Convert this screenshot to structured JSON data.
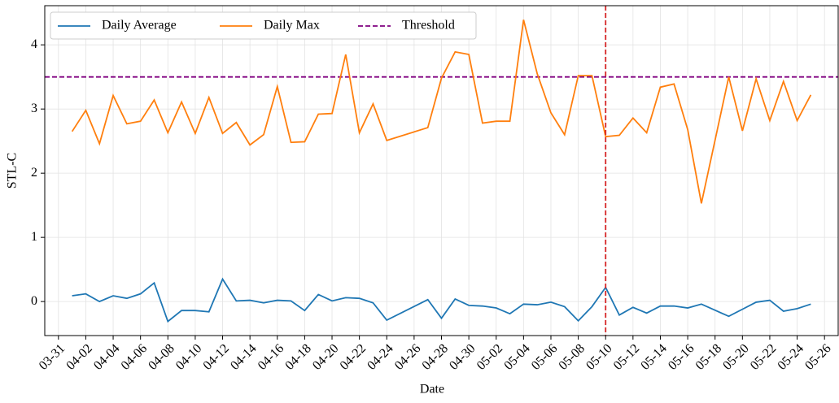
{
  "chart_data": {
    "type": "line",
    "xlabel": "Date",
    "ylabel": "STL-C",
    "x": [
      "04-01",
      "04-02",
      "04-03",
      "04-04",
      "04-05",
      "04-06",
      "04-07",
      "04-08",
      "04-09",
      "04-10",
      "04-11",
      "04-12",
      "04-13",
      "04-14",
      "04-15",
      "04-16",
      "04-17",
      "04-18",
      "04-19",
      "04-20",
      "04-21",
      "04-22",
      "04-23",
      "04-24",
      "04-27",
      "04-28",
      "04-29",
      "04-30",
      "05-01",
      "05-02",
      "05-03",
      "05-04",
      "05-05",
      "05-06",
      "05-07",
      "05-08",
      "05-09",
      "05-10",
      "05-11",
      "05-12",
      "05-13",
      "05-14",
      "05-15",
      "05-16",
      "05-17",
      "05-19",
      "05-20",
      "05-21",
      "05-22",
      "05-23",
      "05-24",
      "05-25"
    ],
    "series": [
      {
        "name": "Daily Average",
        "color": "#1f77b4",
        "values": [
          0.09,
          0.12,
          0.0,
          0.09,
          0.05,
          0.12,
          0.29,
          -0.31,
          -0.14,
          -0.14,
          -0.16,
          0.35,
          0.01,
          0.02,
          -0.02,
          0.02,
          0.01,
          -0.14,
          0.11,
          0.01,
          0.06,
          0.05,
          -0.02,
          -0.29,
          0.03,
          -0.26,
          0.04,
          -0.06,
          -0.07,
          -0.1,
          -0.19,
          -0.04,
          -0.05,
          -0.01,
          -0.08,
          -0.3,
          -0.08,
          0.22,
          -0.21,
          -0.09,
          -0.18,
          -0.07,
          -0.07,
          -0.1,
          -0.04,
          -0.23,
          -0.12,
          -0.01,
          0.02,
          -0.15,
          -0.11,
          -0.04
        ]
      },
      {
        "name": "Daily Max",
        "color": "#ff7f0e",
        "values": [
          2.65,
          2.98,
          2.46,
          3.21,
          2.77,
          2.81,
          3.14,
          2.63,
          3.11,
          2.62,
          3.18,
          2.62,
          2.79,
          2.44,
          2.6,
          3.35,
          2.48,
          2.49,
          2.92,
          2.93,
          3.85,
          2.63,
          3.08,
          2.51,
          2.71,
          3.48,
          3.89,
          3.85,
          2.78,
          2.81,
          2.81,
          4.39,
          3.55,
          2.94,
          2.6,
          3.52,
          3.52,
          2.57,
          2.59,
          2.86,
          2.63,
          3.34,
          3.39,
          2.68,
          1.53,
          3.5,
          2.66,
          3.47,
          2.82,
          3.43,
          2.82,
          3.22
        ]
      }
    ],
    "threshold": {
      "name": "Threshold",
      "value": 3.5,
      "color": "#800080"
    },
    "vline": {
      "x": "05-10",
      "color": "#d62728"
    },
    "xlim": [
      "03-30",
      "05-27"
    ],
    "xticks": [
      "03-31",
      "04-02",
      "04-04",
      "04-06",
      "04-08",
      "04-10",
      "04-12",
      "04-14",
      "04-16",
      "04-18",
      "04-20",
      "04-22",
      "04-24",
      "04-26",
      "04-28",
      "04-30",
      "05-02",
      "05-04",
      "05-06",
      "05-08",
      "05-10",
      "05-12",
      "05-14",
      "05-16",
      "05-18",
      "05-20",
      "05-22",
      "05-24",
      "05-26"
    ],
    "ylim": [
      -0.53,
      4.61
    ],
    "yticks": [
      0,
      1,
      2,
      3,
      4
    ],
    "grid": true,
    "legend": "upper left"
  }
}
